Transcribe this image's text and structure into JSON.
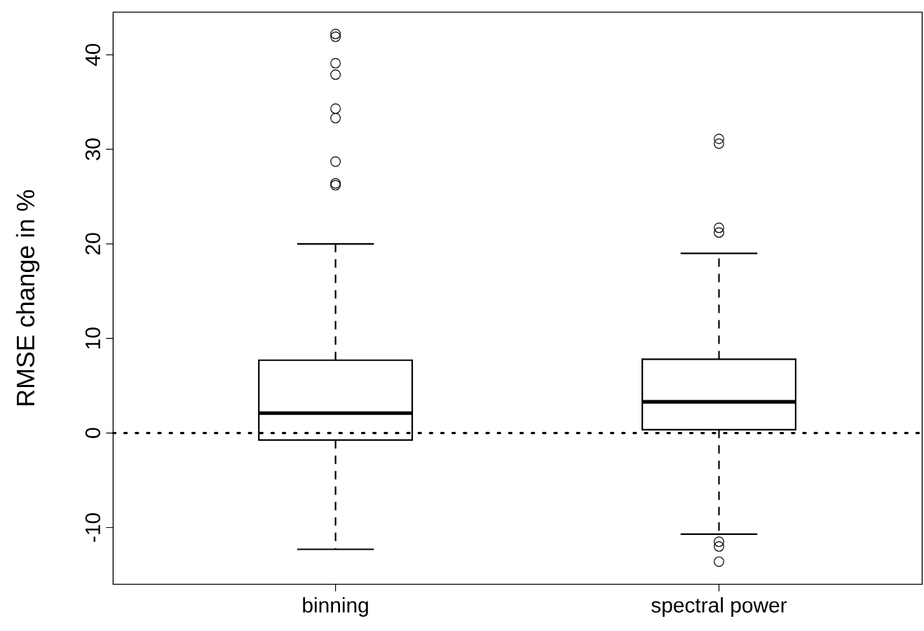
{
  "chart_data": {
    "type": "box",
    "ylabel": "RMSE change in %",
    "categories": [
      "binning",
      "spectral power"
    ],
    "boxes": [
      {
        "low": -12.3,
        "q1": -0.75,
        "median": 2.1,
        "q3": 7.7,
        "high": 20.0,
        "outliers": [
          42.2,
          41.9,
          39.1,
          37.9,
          34.3,
          33.3,
          28.7,
          26.4,
          26.2
        ]
      },
      {
        "low": -10.7,
        "q1": 0.35,
        "median": 3.3,
        "q3": 7.8,
        "high": 19.0,
        "outliers": [
          31.1,
          30.6,
          21.7,
          21.2,
          -11.5,
          -12.0,
          -13.6
        ]
      }
    ],
    "color": "#000000",
    "ylim": [
      -16,
      44.5
    ],
    "yticks": [
      -10,
      0,
      10,
      20,
      30,
      40
    ],
    "ref_lines": [
      {
        "axis": "y",
        "value": 0,
        "line_style": "dotted",
        "color": "#000000"
      }
    ],
    "grid": false,
    "marker": "circle"
  }
}
